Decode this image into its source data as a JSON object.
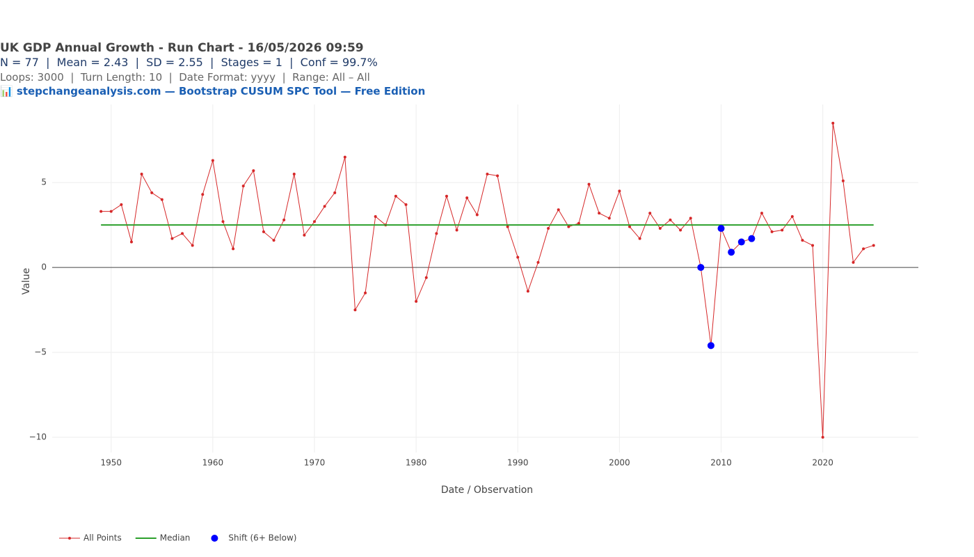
{
  "header": {
    "title": "UK GDP Annual Growth - Run Chart - 16/05/2026 09:59",
    "stats": "N = 77  |  Mean = 2.43  |  SD = 2.55  |  Stages = 1  |  Conf = 99.7%",
    "settings": "Loops: 3000  |  Turn Length: 10  |  Date Format: yyyy  |  Range: All – All",
    "brand": "📊 stepchangeanalysis.com — Bootstrap CUSUM SPC Tool — Free Edition"
  },
  "chart_data": {
    "type": "line",
    "x_label": "Date / Observation",
    "y_label": "Value",
    "xlim": [
      1944.2,
      2029.4
    ],
    "ylim": [
      -10.9,
      9.6
    ],
    "xticks": [
      1950,
      1960,
      1970,
      1980,
      1990,
      2000,
      2010,
      2020
    ],
    "yticks": [
      {
        "value": -10,
        "label": "−10"
      },
      {
        "value": -5,
        "label": "−5"
      },
      0,
      5
    ],
    "grid": true,
    "zero_line": true,
    "legend": "bottom",
    "series": [
      {
        "name": "All Points",
        "color": "#d62728",
        "mode": "lines+markers",
        "x": [
          1949,
          1950,
          1951,
          1952,
          1953,
          1954,
          1955,
          1956,
          1957,
          1958,
          1959,
          1960,
          1961,
          1962,
          1963,
          1964,
          1965,
          1966,
          1967,
          1968,
          1969,
          1970,
          1971,
          1972,
          1973,
          1974,
          1975,
          1976,
          1977,
          1978,
          1979,
          1980,
          1981,
          1982,
          1983,
          1984,
          1985,
          1986,
          1987,
          1988,
          1989,
          1990,
          1991,
          1992,
          1993,
          1994,
          1995,
          1996,
          1997,
          1998,
          1999,
          2000,
          2001,
          2002,
          2003,
          2004,
          2005,
          2006,
          2007,
          2008,
          2009,
          2010,
          2011,
          2012,
          2013,
          2014,
          2015,
          2016,
          2017,
          2018,
          2019,
          2020,
          2021,
          2022,
          2023,
          2024,
          2025
        ],
        "values": [
          3.3,
          3.3,
          3.7,
          1.5,
          5.5,
          4.4,
          4.0,
          1.7,
          2.0,
          1.3,
          4.3,
          6.3,
          2.7,
          1.1,
          4.8,
          5.7,
          2.1,
          1.6,
          2.8,
          5.5,
          1.9,
          2.7,
          3.6,
          4.4,
          6.5,
          -2.5,
          -1.5,
          3.0,
          2.5,
          4.2,
          3.7,
          -2.0,
          -0.6,
          2.0,
          4.2,
          2.2,
          4.1,
          3.1,
          5.5,
          5.4,
          2.4,
          0.6,
          -1.4,
          0.3,
          2.3,
          3.4,
          2.4,
          2.6,
          4.9,
          3.2,
          2.9,
          4.5,
          2.4,
          1.7,
          3.2,
          2.3,
          2.8,
          2.2,
          2.9,
          0.0,
          -4.6,
          2.3,
          0.9,
          1.5,
          1.7,
          3.2,
          2.1,
          2.2,
          3.0,
          1.6,
          1.3,
          -10.0,
          8.5,
          5.1,
          0.3,
          1.1,
          1.3
        ]
      },
      {
        "name": "Median",
        "color": "#2ca02c",
        "mode": "lines",
        "x": [
          1949,
          2025
        ],
        "values": [
          2.5,
          2.5
        ]
      },
      {
        "name": "Shift (6+ Below)",
        "color": "#0000ff",
        "mode": "markers",
        "x": [
          2008,
          2009,
          2010,
          2011,
          2012,
          2013
        ],
        "values": [
          0.0,
          -4.6,
          2.3,
          0.9,
          1.5,
          1.7
        ]
      }
    ]
  }
}
